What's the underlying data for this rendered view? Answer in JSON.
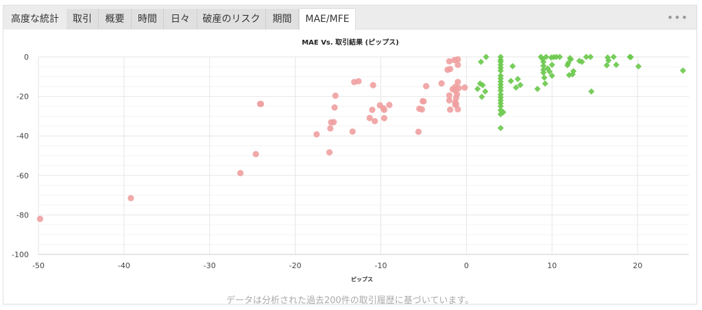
{
  "tabs": [
    {
      "label": "高度な統計",
      "name": "tab-advanced-stats"
    },
    {
      "label": "取引",
      "name": "tab-trades"
    },
    {
      "label": "概要",
      "name": "tab-summary"
    },
    {
      "label": "時間",
      "name": "tab-hours"
    },
    {
      "label": "日々",
      "name": "tab-daily"
    },
    {
      "label": "破産のリスク",
      "name": "tab-risk-of-ruin"
    },
    {
      "label": "期間",
      "name": "tab-duration"
    },
    {
      "label": "MAE/MFE",
      "name": "tab-mae-mfe"
    }
  ],
  "active_tab": 7,
  "more_label": "•••",
  "footnote": "データは分析された過去200件の取引履歴に基づいています。",
  "chart_data": {
    "type": "scatter",
    "title": "MAE Vs. 取引結果 (ピップス)",
    "xlabel": "ピップス",
    "ylabel": "",
    "xlim": [
      -50,
      26
    ],
    "ylim": [
      -100,
      0
    ],
    "xticks": [
      -50,
      -40,
      -30,
      -20,
      -10,
      0,
      10,
      20
    ],
    "yticks": [
      0,
      -20,
      -40,
      -60,
      -80,
      -100
    ],
    "grid": true,
    "legend": "none",
    "series": [
      {
        "color": "#f0a0a0",
        "marker": "circle",
        "points": [
          [
            -49.8,
            -82
          ],
          [
            -39.2,
            -71.5
          ],
          [
            -26.4,
            -58.8
          ],
          [
            -24.6,
            -49.2
          ],
          [
            -24.1,
            -23.8
          ],
          [
            -24.0,
            -23.8
          ],
          [
            -17.5,
            -39.2
          ],
          [
            -16.0,
            -48.3
          ],
          [
            -15.9,
            -36.2
          ],
          [
            -15.8,
            -33.1
          ],
          [
            -15.5,
            -33.0
          ],
          [
            -15.4,
            -25.6
          ],
          [
            -15.3,
            -19.6
          ],
          [
            -13.3,
            -37.8
          ],
          [
            -13.1,
            -12.7
          ],
          [
            -12.6,
            -12.3
          ],
          [
            -11.3,
            -30.9
          ],
          [
            -11.0,
            -26.8
          ],
          [
            -10.9,
            -14.3
          ],
          [
            -10.7,
            -32.5
          ],
          [
            -10.1,
            -24.5
          ],
          [
            -9.7,
            -26.0
          ],
          [
            -9.6,
            -26.8
          ],
          [
            -9.6,
            -31.0
          ],
          [
            -9.0,
            -24.3
          ],
          [
            -5.6,
            -37.9
          ],
          [
            -5.5,
            -26.2
          ],
          [
            -5.2,
            -26.6
          ],
          [
            -5.1,
            -22.4
          ],
          [
            -5.0,
            -22.5
          ],
          [
            -4.7,
            -14.8
          ],
          [
            -2.9,
            -13.4
          ],
          [
            -2.2,
            -6.5
          ],
          [
            -2.0,
            -2.2
          ],
          [
            -2.0,
            -19.5
          ],
          [
            -2.0,
            -22.0
          ],
          [
            -1.9,
            -26.7
          ],
          [
            -1.9,
            -6.1
          ],
          [
            -1.6,
            -16.3
          ],
          [
            -1.4,
            -1.6
          ],
          [
            -1.3,
            -15.2
          ],
          [
            -1.3,
            -17.0
          ],
          [
            -1.3,
            -23.0
          ],
          [
            -1.3,
            -24.2
          ],
          [
            -1.2,
            -23.9
          ],
          [
            -1.2,
            -20.8
          ],
          [
            -1.1,
            -18.9
          ],
          [
            -1.0,
            -1.2
          ],
          [
            -1.0,
            -4.0
          ],
          [
            -1.0,
            -12.7
          ],
          [
            -1.0,
            -26.5
          ],
          [
            -0.9,
            -15.8
          ],
          [
            -0.2,
            -15.5
          ]
        ]
      },
      {
        "color": "#6cc94e",
        "marker": "diamond",
        "points": [
          [
            1.3,
            -16.2
          ],
          [
            1.6,
            -13.5
          ],
          [
            1.7,
            -2.5
          ],
          [
            1.8,
            -20.2
          ],
          [
            1.9,
            -14.3
          ],
          [
            2.2,
            -17.5
          ],
          [
            2.3,
            0
          ],
          [
            4.0,
            0
          ],
          [
            4.0,
            -1.5
          ],
          [
            4.0,
            -2.5
          ],
          [
            4.0,
            -4.0
          ],
          [
            4.0,
            -5.5
          ],
          [
            4.0,
            -7.0
          ],
          [
            4.0,
            -9.5
          ],
          [
            4.0,
            -11.0
          ],
          [
            4.0,
            -12.5
          ],
          [
            4.0,
            -14.0
          ],
          [
            4.0,
            -15.5
          ],
          [
            4.0,
            -17.0
          ],
          [
            4.0,
            -19.0
          ],
          [
            4.0,
            -20.5
          ],
          [
            4.0,
            -22.0
          ],
          [
            4.0,
            -23.5
          ],
          [
            4.0,
            -25.0
          ],
          [
            4.0,
            -27.0
          ],
          [
            4.0,
            -29.0
          ],
          [
            4.0,
            -36.0
          ],
          [
            4.3,
            -28.0
          ],
          [
            5.2,
            -12.2
          ],
          [
            5.4,
            -4.7
          ],
          [
            5.8,
            -15.5
          ],
          [
            6.0,
            -11.2
          ],
          [
            6.3,
            -14.2
          ],
          [
            8.3,
            -16.2
          ],
          [
            8.7,
            0
          ],
          [
            8.9,
            -1.0
          ],
          [
            9.0,
            -2.5
          ],
          [
            9.0,
            -4.5
          ],
          [
            9.0,
            -6.5
          ],
          [
            9.0,
            -8.0
          ],
          [
            9.1,
            -10.5
          ],
          [
            9.2,
            -13.5
          ],
          [
            9.3,
            0
          ],
          [
            9.5,
            -5.8
          ],
          [
            9.7,
            -7.4
          ],
          [
            9.9,
            -0.3
          ],
          [
            10.0,
            -4.0
          ],
          [
            10.0,
            -9.5
          ],
          [
            10.2,
            -0.1
          ],
          [
            10.5,
            0
          ],
          [
            10.9,
            0
          ],
          [
            11.8,
            -4.2
          ],
          [
            11.9,
            -3.1
          ],
          [
            12.0,
            -9.2
          ],
          [
            12.1,
            -0.6
          ],
          [
            12.2,
            -1.2
          ],
          [
            12.4,
            -8.8
          ],
          [
            12.5,
            -7.2
          ],
          [
            13.2,
            -2.0
          ],
          [
            13.5,
            -2.5
          ],
          [
            14.0,
            0
          ],
          [
            14.5,
            0
          ],
          [
            14.6,
            -17.5
          ],
          [
            16.4,
            -4.2
          ],
          [
            16.5,
            -0.3
          ],
          [
            16.6,
            -1.8
          ],
          [
            17.2,
            0
          ],
          [
            17.5,
            -4.0
          ],
          [
            19.1,
            0
          ],
          [
            19.2,
            -0.1
          ],
          [
            20.1,
            -4.8
          ],
          [
            25.3,
            -6.9
          ]
        ]
      }
    ]
  }
}
